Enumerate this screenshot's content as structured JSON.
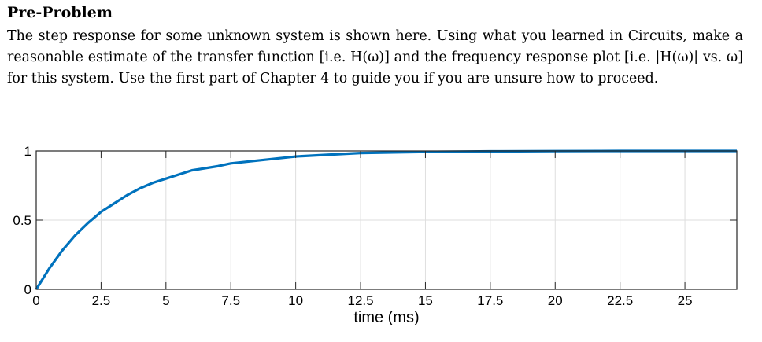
{
  "problem": {
    "title": "Pre-Problem",
    "text": "The step response for some unknown system is shown here. Using what you learned in Circuits, make a reasonable estimate of the transfer function [i.e. H(ω)] and the frequency response plot [i.e. |H(ω)| vs. ω] for this system. Use the first part of Chapter 4 to guide you if you are unsure how to proceed."
  },
  "chart_data": {
    "type": "line",
    "title": "",
    "xlabel": "time (ms)",
    "ylabel": "",
    "xlim": [
      0,
      27
    ],
    "ylim": [
      0,
      1
    ],
    "grid": true,
    "line_color": "#0072BD",
    "x_ticks": [
      0,
      2.5,
      5,
      7.5,
      10,
      12.5,
      15,
      17.5,
      20,
      22.5,
      25
    ],
    "x_tick_labels": [
      "0",
      "2.5",
      "5",
      "7.5",
      "10",
      "12.5",
      "15",
      "17.5",
      "20",
      "22.5",
      "25"
    ],
    "y_ticks": [
      0,
      0.5,
      1
    ],
    "y_tick_labels": [
      "0",
      "0.5",
      "1"
    ],
    "series": [
      {
        "x": [
          0,
          0.5,
          1,
          1.5,
          2,
          2.5,
          3,
          3.5,
          4,
          4.5,
          5,
          6,
          7,
          7.5,
          8,
          9,
          10,
          11,
          12,
          12.5,
          14,
          15,
          17.5,
          20,
          22.5,
          25,
          27
        ],
        "y": [
          0,
          0.15,
          0.28,
          0.39,
          0.48,
          0.56,
          0.62,
          0.68,
          0.73,
          0.77,
          0.8,
          0.86,
          0.89,
          0.91,
          0.92,
          0.94,
          0.96,
          0.97,
          0.98,
          0.985,
          0.99,
          0.993,
          0.997,
          0.999,
          1.0,
          1.0,
          1.0
        ]
      }
    ]
  }
}
